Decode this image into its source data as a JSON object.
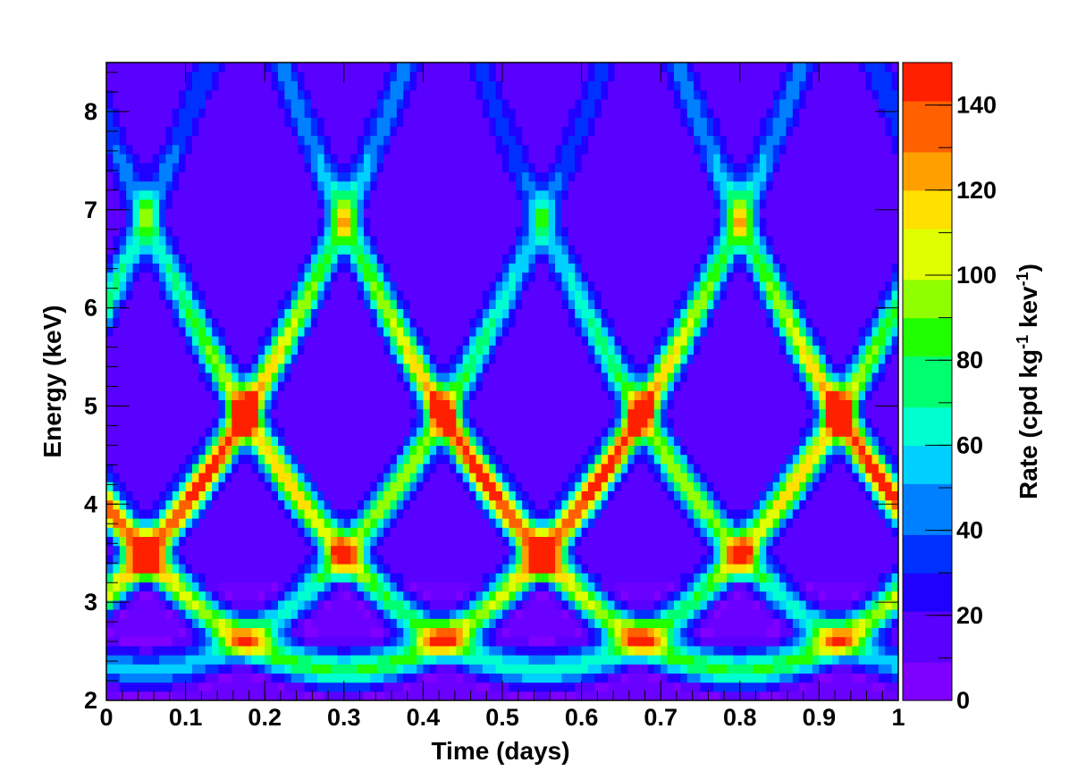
{
  "chart_data": {
    "type": "heatmap",
    "title": "",
    "xlabel": "Time (days)",
    "ylabel": "Energy (keV)",
    "colorbar_label": "Rate (cpd kg",
    "colorbar_label_sup1": "-1",
    "colorbar_label_mid": " kev",
    "colorbar_label_sup2": "-1",
    "colorbar_label_end": ")",
    "xlim": [
      0,
      1
    ],
    "ylim": [
      2,
      8.5
    ],
    "zlim": [
      0,
      150
    ],
    "x_ticks": [
      {
        "value": 0,
        "label": "0"
      },
      {
        "value": 0.1,
        "label": "0.1"
      },
      {
        "value": 0.2,
        "label": "0.2"
      },
      {
        "value": 0.3,
        "label": "0.3"
      },
      {
        "value": 0.4,
        "label": "0.4"
      },
      {
        "value": 0.5,
        "label": "0.5"
      },
      {
        "value": 0.6,
        "label": "0.6"
      },
      {
        "value": 0.7,
        "label": "0.7"
      },
      {
        "value": 0.8,
        "label": "0.8"
      },
      {
        "value": 0.9,
        "label": "0.9"
      },
      {
        "value": 1,
        "label": "1"
      }
    ],
    "y_ticks": [
      {
        "value": 2,
        "label": "2"
      },
      {
        "value": 3,
        "label": "3"
      },
      {
        "value": 4,
        "label": "4"
      },
      {
        "value": 5,
        "label": "5"
      },
      {
        "value": 6,
        "label": "6"
      },
      {
        "value": 7,
        "label": "7"
      },
      {
        "value": 8,
        "label": "8"
      }
    ],
    "z_ticks": [
      {
        "value": 0,
        "label": "0"
      },
      {
        "value": 20,
        "label": "20"
      },
      {
        "value": 40,
        "label": "40"
      },
      {
        "value": 60,
        "label": "60"
      },
      {
        "value": 80,
        "label": "80"
      },
      {
        "value": 100,
        "label": "100"
      },
      {
        "value": 120,
        "label": "120"
      },
      {
        "value": 140,
        "label": "140"
      }
    ],
    "colormap": [
      "#7f00ff",
      "#5a00ff",
      "#2000ff",
      "#0030ff",
      "#0080ff",
      "#00d0ff",
      "#00ffd0",
      "#00ff70",
      "#20ff00",
      "#90ff00",
      "#e0ff00",
      "#ffe000",
      "#ffa000",
      "#ff6000",
      "#ff2000"
    ],
    "curves": [
      {
        "family": "rising",
        "bottom_time": 0.05,
        "peak_rate": 90
      },
      {
        "family": "falling",
        "bottom_time": 0.05,
        "peak_rate": 90
      },
      {
        "family": "rising",
        "bottom_time": 0.3,
        "peak_rate": 140
      },
      {
        "family": "falling",
        "bottom_time": 0.3,
        "peak_rate": 140
      },
      {
        "family": "rising",
        "bottom_time": 0.55,
        "peak_rate": 110
      },
      {
        "family": "falling",
        "bottom_time": 0.55,
        "peak_rate": 110
      },
      {
        "family": "rising",
        "bottom_time": 0.8,
        "peak_rate": 140
      },
      {
        "family": "falling",
        "bottom_time": 0.8,
        "peak_rate": 140
      }
    ]
  }
}
